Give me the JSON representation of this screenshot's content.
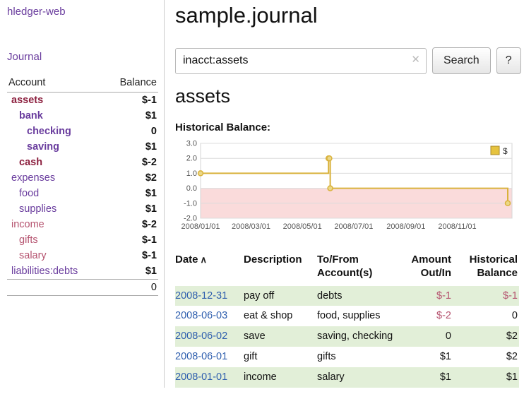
{
  "app": {
    "brand": "hledger-web",
    "nav": {
      "journal": "Journal"
    }
  },
  "sidebar": {
    "table_header": {
      "account": "Account",
      "balance": "Balance"
    },
    "accounts": [
      {
        "name": "assets",
        "balance": "$-1",
        "depth": 1,
        "bold": true,
        "negative": true,
        "balance_negative": true
      },
      {
        "name": "bank",
        "balance": "$1",
        "depth": 2,
        "bold": true,
        "negative": false,
        "balance_negative": false
      },
      {
        "name": "checking",
        "balance": "0",
        "depth": 3,
        "bold": true,
        "negative": false,
        "balance_negative": false
      },
      {
        "name": "saving",
        "balance": "$1",
        "depth": 3,
        "bold": true,
        "negative": false,
        "balance_negative": false
      },
      {
        "name": "cash",
        "balance": "$-2",
        "depth": 2,
        "bold": true,
        "negative": true,
        "balance_negative": true
      },
      {
        "name": "expenses",
        "balance": "$2",
        "depth": 1,
        "bold": false,
        "negative": false,
        "balance_negative": false
      },
      {
        "name": "food",
        "balance": "$1",
        "depth": 2,
        "bold": false,
        "negative": false,
        "balance_negative": false
      },
      {
        "name": "supplies",
        "balance": "$1",
        "depth": 2,
        "bold": false,
        "negative": false,
        "balance_negative": false
      },
      {
        "name": "income",
        "balance": "$-2",
        "depth": 1,
        "bold": false,
        "negative": true,
        "balance_negative": true
      },
      {
        "name": "gifts",
        "balance": "$-1",
        "depth": 2,
        "bold": false,
        "negative": true,
        "balance_negative": true
      },
      {
        "name": "salary",
        "balance": "$-1",
        "depth": 2,
        "bold": false,
        "negative": true,
        "balance_negative": true
      },
      {
        "name": "liabilities:debts",
        "balance": "$1",
        "depth": 1,
        "bold": false,
        "negative": false,
        "balance_negative": false
      }
    ],
    "total": "0"
  },
  "main": {
    "title": "sample.journal",
    "search": {
      "value": "inacct:assets",
      "clear_icon": "✕",
      "button_label": "Search",
      "help_label": "?"
    },
    "heading": "assets",
    "chart_title": "Historical Balance:"
  },
  "chart_data": {
    "type": "line",
    "title": "Historical Balance",
    "step": true,
    "series": [
      {
        "name": "$",
        "points": [
          {
            "date": "2008-01-01",
            "value": 1
          },
          {
            "date": "2008-06-01",
            "value": 2
          },
          {
            "date": "2008-06-02",
            "value": 2
          },
          {
            "date": "2008-06-03",
            "value": 0
          },
          {
            "date": "2008-12-31",
            "value": -1
          }
        ]
      }
    ],
    "x_range": [
      "2008-01-01",
      "2009-01-05"
    ],
    "ylim": [
      -2,
      3
    ],
    "y_ticks": [
      "3.0",
      "2.0",
      "1.0",
      "0.0",
      "-1.0",
      "-2.0"
    ],
    "x_ticks": [
      {
        "label": "2008/01/01",
        "date": "2008-01-01"
      },
      {
        "label": "2008/03/01",
        "date": "2008-03-01"
      },
      {
        "label": "2008/05/01",
        "date": "2008-05-01"
      },
      {
        "label": "2008/07/01",
        "date": "2008-07-01"
      },
      {
        "label": "2008/09/01",
        "date": "2008-09-01"
      },
      {
        "label": "2008/11/01",
        "date": "2008-11-01"
      }
    ],
    "legend": {
      "label": "$",
      "position": "top-right"
    },
    "grid": true,
    "negative_region_shaded": true
  },
  "register": {
    "headers": {
      "date": "Date",
      "sort_icon": "∧",
      "description": "Description",
      "tofrom": "To/From Account(s)",
      "amount": "Amount Out/In",
      "historical": "Historical Balance"
    },
    "rows": [
      {
        "date": "2008-12-31",
        "description": "pay off",
        "accounts": "debts",
        "amount": "$-1",
        "amount_negative": true,
        "balance": "$-1",
        "balance_negative": true,
        "shaded": true
      },
      {
        "date": "2008-06-03",
        "description": "eat & shop",
        "accounts": "food, supplies",
        "amount": "$-2",
        "amount_negative": true,
        "balance": "0",
        "balance_negative": false,
        "shaded": false
      },
      {
        "date": "2008-06-02",
        "description": "save",
        "accounts": "saving, checking",
        "amount": "0",
        "amount_negative": false,
        "balance": "$2",
        "balance_negative": false,
        "shaded": true
      },
      {
        "date": "2008-06-01",
        "description": "gift",
        "accounts": "gifts",
        "amount": "$1",
        "amount_negative": false,
        "balance": "$2",
        "balance_negative": false,
        "shaded": false
      },
      {
        "date": "2008-01-01",
        "description": "income",
        "accounts": "salary",
        "amount": "$1",
        "amount_negative": false,
        "balance": "$1",
        "balance_negative": false,
        "shaded": true
      }
    ]
  },
  "colors": {
    "link_purple": "#6a3d9e",
    "negative_strong": "#8c1f3e",
    "negative_soft": "#b5536f",
    "date_link_blue": "#2f5fae",
    "row_stripe_green": "#e2efd8",
    "chart_line": "#d9b23c",
    "chart_marker_fill": "#ecd887",
    "chart_negative_fill": "#fadbdb",
    "chart_legend_fill": "#e6c33f",
    "chart_legend_border": "#a8882a"
  }
}
